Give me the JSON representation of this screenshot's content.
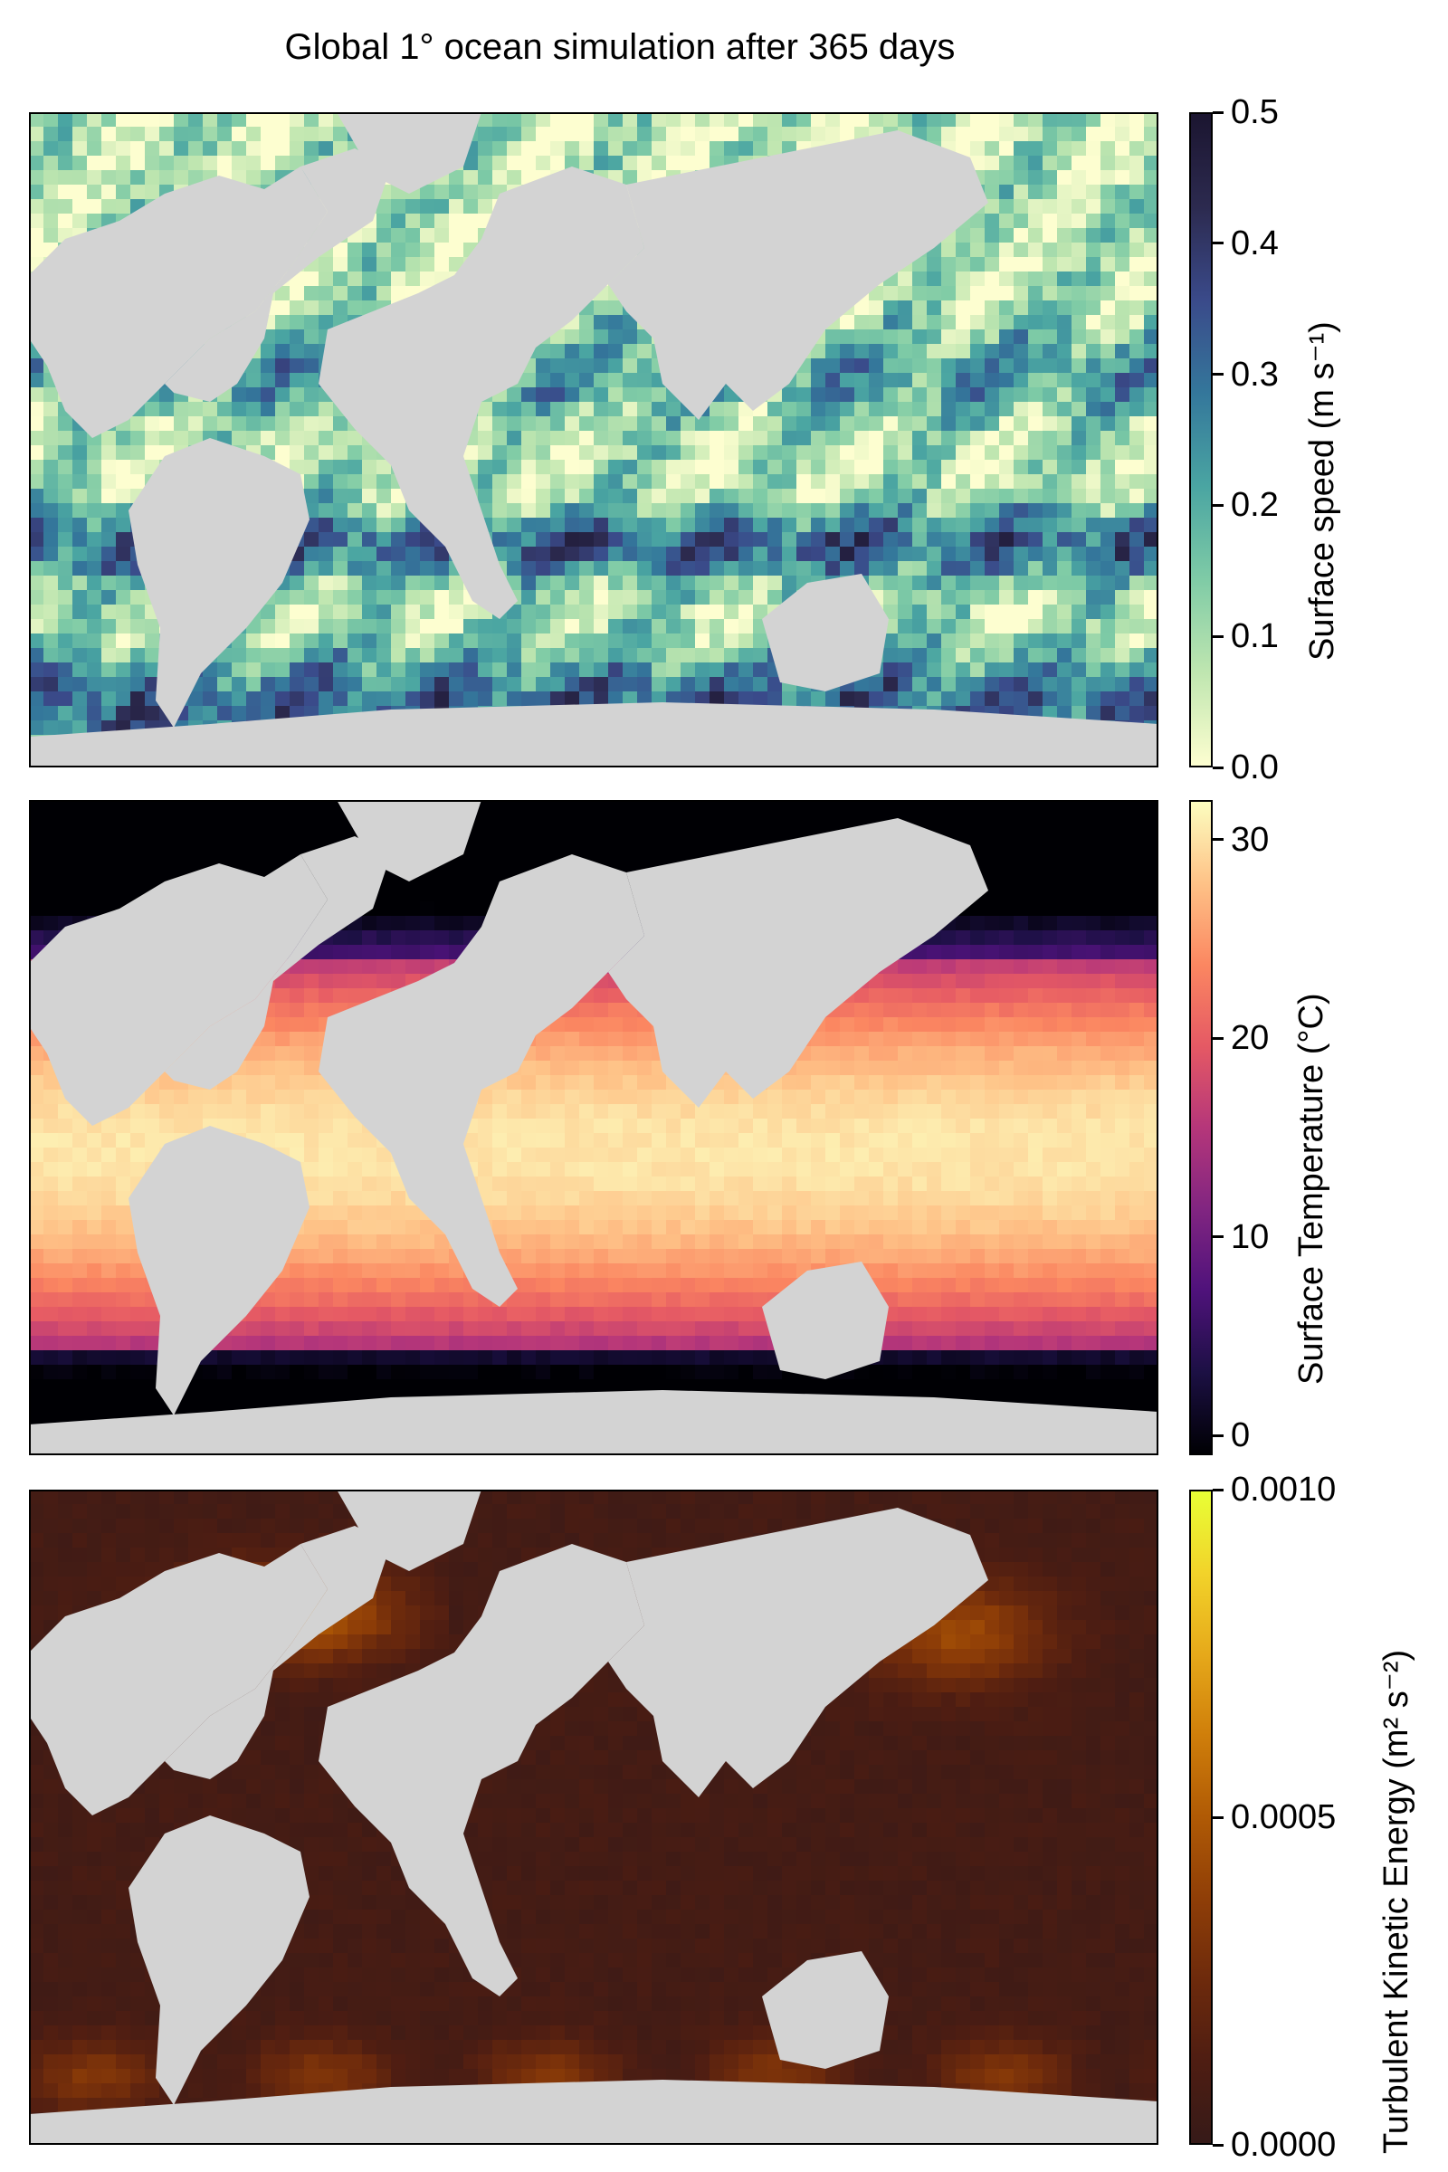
{
  "figure": {
    "title": "Global 1° ocean simulation after 365 days",
    "land_color": "#d3d3d3"
  },
  "chart_data": [
    {
      "type": "heatmap",
      "title": "",
      "colorbar_label": "Surface speed (m s⁻¹)",
      "colormap": "deep",
      "colormap_stops": [
        "#fdfed0",
        "#bfe6b0",
        "#7fcba6",
        "#4aa5a2",
        "#34779b",
        "#3a4a8a",
        "#2c2a4f",
        "#1b1530"
      ],
      "clim": [
        0.0,
        0.5
      ],
      "colorbar_ticks": [
        "0.0",
        "0.1",
        "0.2",
        "0.3",
        "0.4",
        "0.5"
      ],
      "colorbar_tick_values": [
        0.0,
        0.1,
        0.2,
        0.3,
        0.4,
        0.5
      ]
    },
    {
      "type": "heatmap",
      "title": "",
      "colorbar_label": "Surface Temperature (°C)",
      "colormap": "magma",
      "colormap_stops": [
        "#000004",
        "#1c1044",
        "#4f127b",
        "#812581",
        "#b5367a",
        "#e55964",
        "#fb8761",
        "#fec287",
        "#fcfdbf"
      ],
      "clim": [
        -1,
        32
      ],
      "colorbar_ticks": [
        "0",
        "10",
        "20",
        "30"
      ],
      "colorbar_tick_values": [
        0,
        10,
        20,
        30
      ]
    },
    {
      "type": "heatmap",
      "title": "",
      "colorbar_label": "Turbulent Kinetic Energy (m² s⁻²)",
      "colormap": "solar",
      "colormap_stops": [
        "#361a18",
        "#4e1d12",
        "#6d2a0c",
        "#8f3e07",
        "#b05a05",
        "#cf7e0a",
        "#e6a91a",
        "#f2d32a",
        "#e8ff35"
      ],
      "clim": [
        0.0,
        0.001
      ],
      "colorbar_ticks": [
        "0.0000",
        "0.0005",
        "0.0010"
      ],
      "colorbar_tick_values": [
        0.0,
        0.0005,
        0.001
      ]
    }
  ]
}
